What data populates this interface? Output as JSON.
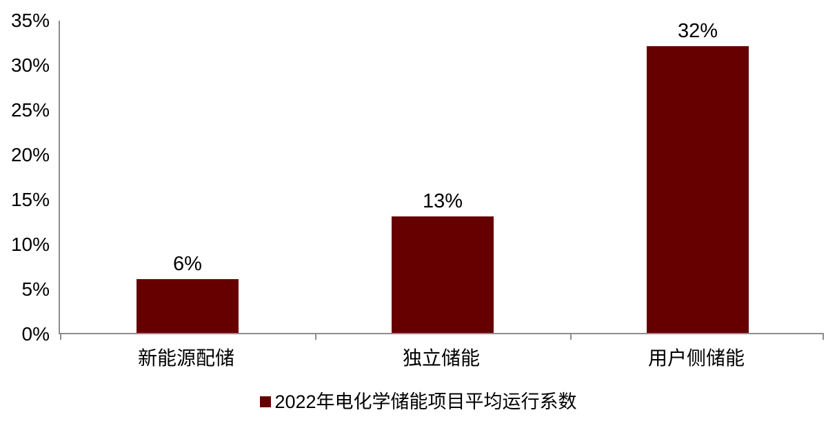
{
  "chart_data": {
    "type": "bar",
    "title": "",
    "xlabel": "",
    "ylabel": "",
    "categories": [
      "新能源配储",
      "独立储能",
      "用户侧储能"
    ],
    "values": [
      6,
      13,
      32
    ],
    "value_labels": [
      "6%",
      "13%",
      "32%"
    ],
    "yticks": [
      "0%",
      "5%",
      "10%",
      "15%",
      "20%",
      "25%",
      "30%",
      "35%"
    ],
    "ylim": [
      0,
      35
    ],
    "grid": false,
    "legend_position": "bottom",
    "series_name": "2022年电化学储能项目平均运行系数",
    "bar_color": "#660000",
    "axis_color": "#8c8c8c",
    "text_color": "#000000"
  },
  "legend": {
    "label": "2022年电化学储能项目平均运行系数"
  }
}
